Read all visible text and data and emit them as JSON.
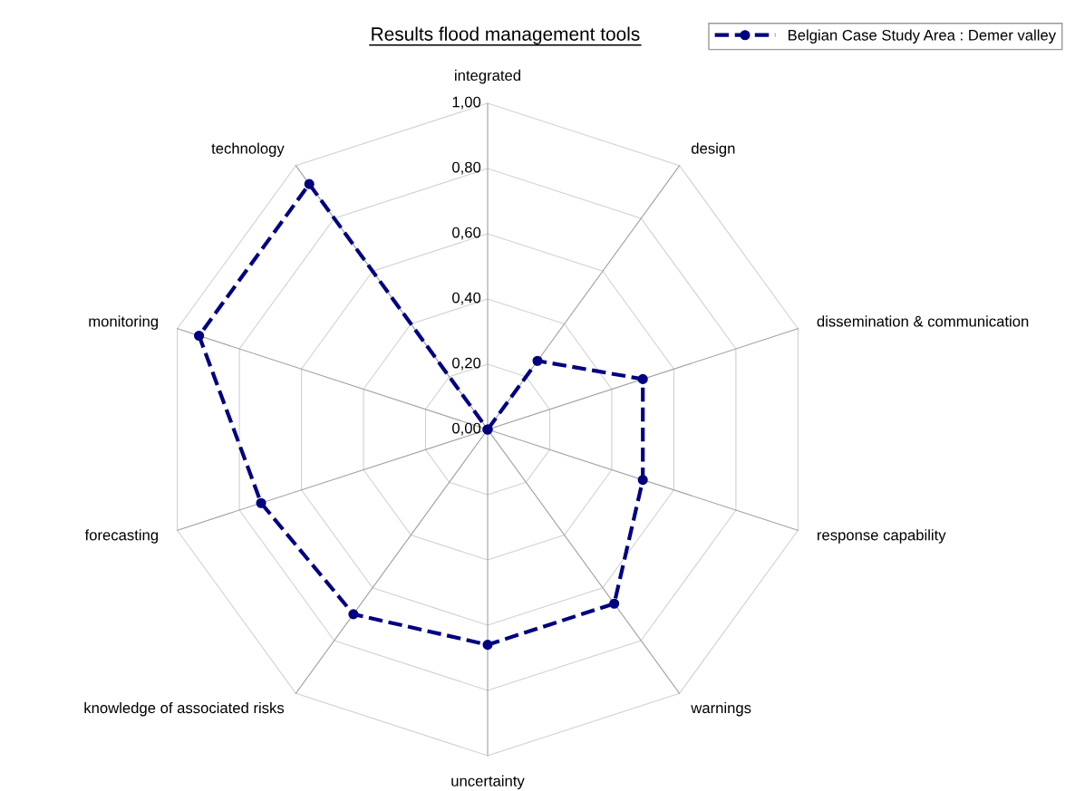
{
  "chart_data": {
    "type": "radar",
    "title": "Results flood management tools",
    "categories": [
      "integrated",
      "design",
      "dissemination & communication",
      "response capability",
      "warnings",
      "uncertainty",
      "knowledge of associated risks",
      "forecasting",
      "monitoring",
      "technology"
    ],
    "series": [
      {
        "name": "Belgian Case Study Area : Demer valley",
        "color": "#000080",
        "values": [
          0,
          0.26,
          0.5,
          0.5,
          0.66,
          0.66,
          0.7,
          0.73,
          0.93,
          0.93
        ]
      }
    ],
    "ylim": [
      0,
      1
    ],
    "yticks": [
      {
        "value": 0,
        "label": "0,00"
      },
      {
        "value": 0.2,
        "label": "0,20"
      },
      {
        "value": 0.4,
        "label": "0,40"
      },
      {
        "value": 0.6,
        "label": "0,60"
      },
      {
        "value": 0.8,
        "label": "0,80"
      },
      {
        "value": 1,
        "label": "1,00"
      }
    ],
    "grid": true,
    "legend": "top right",
    "marker": "circle",
    "line_style": "dashed"
  }
}
